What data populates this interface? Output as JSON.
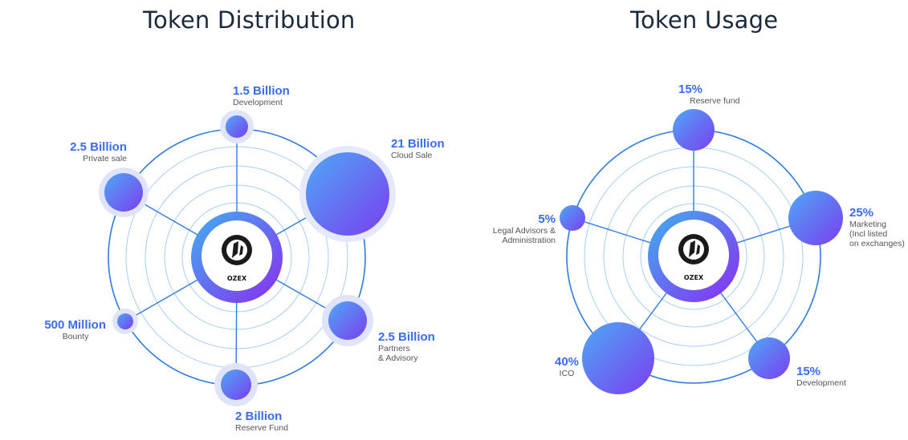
{
  "token_distribution": {
    "title": "Token Distribution",
    "center_label": "OZEX",
    "items": [
      {
        "value": "1.5 Billion",
        "label": "Development"
      },
      {
        "value": "21 Billion",
        "label": "Cloud Sale"
      },
      {
        "value": "2.5 Billion",
        "label": "Partners\n& Advisory"
      },
      {
        "value": "2 Billion",
        "label": "Reserve Fund"
      },
      {
        "value": "500 Million",
        "label": "Bounty"
      },
      {
        "value": "2.5 Billion",
        "label": "Private sale"
      }
    ]
  },
  "token_usage": {
    "title": "Token Usage",
    "center_label": "OZEX",
    "items": [
      {
        "value": "15%",
        "label": "Reserve fund"
      },
      {
        "value": "25%",
        "label": "Marketing\n(Incl listed\non exchanges)"
      },
      {
        "value": "15%",
        "label": "Development"
      },
      {
        "value": "40%",
        "label": "ICO"
      },
      {
        "value": "5%",
        "label": "Legal Advisors &\nAdministration"
      }
    ]
  },
  "colors": {
    "accent_blue": "#3a6cf2",
    "ring_blue": "#2f7be0",
    "bubble_start": "#4fa8f5",
    "bubble_end": "#7a3ef0",
    "title": "#1b2a3a"
  }
}
